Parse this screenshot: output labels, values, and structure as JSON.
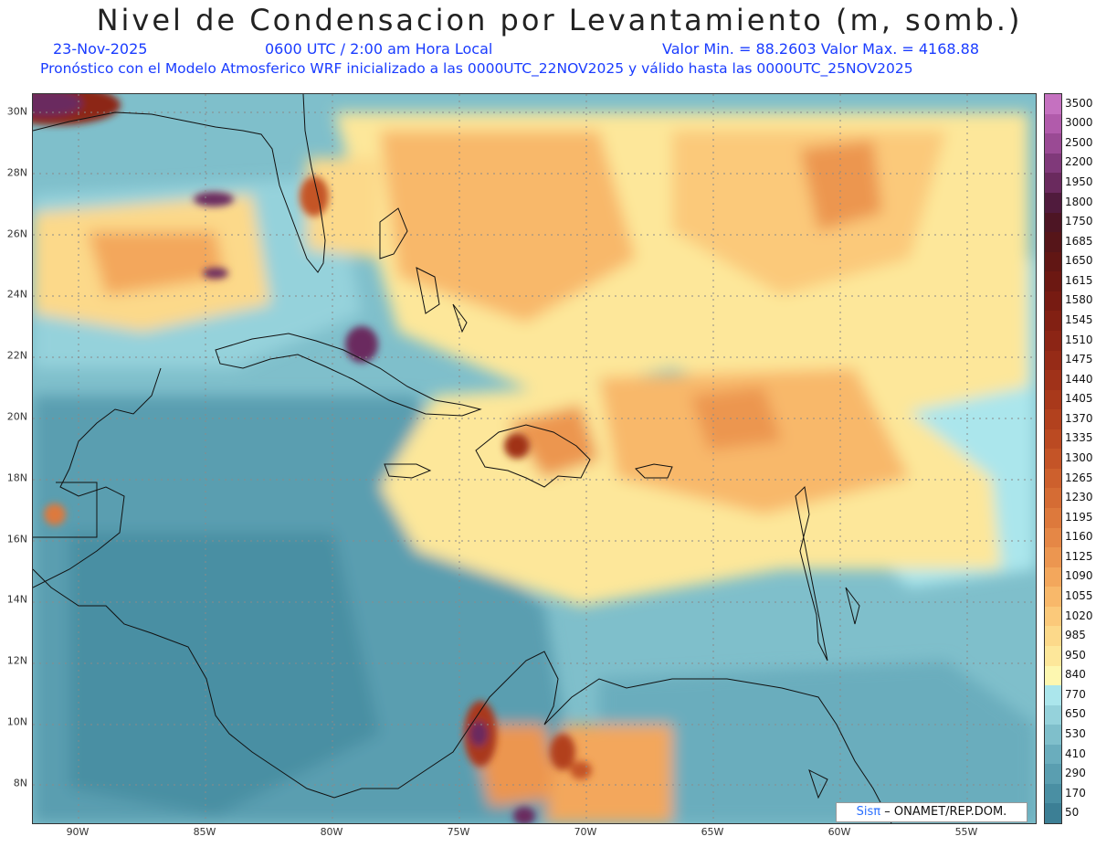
{
  "title": "Nivel de Condensacion por Levantamiento (m, somb.)",
  "subtitle": {
    "date": "23-Nov-2025",
    "time": "0600 UTC / 2:00 am Hora Local",
    "minmax": "Valor Min. = 88.2603   Valor Max. = 4168.88",
    "model_info": "Pronóstico con el Modelo Atmosferico WRF inicializado a las 0000UTC_22NOV2025 y válido hasta las  0000UTC_25NOV2025"
  },
  "lat_ticks": [
    "30N",
    "28N",
    "26N",
    "24N",
    "22N",
    "20N",
    "18N",
    "16N",
    "14N",
    "12N",
    "10N",
    "8N"
  ],
  "lon_ticks": [
    "90W",
    "85W",
    "80W",
    "75W",
    "70W",
    "65W",
    "60W",
    "55W"
  ],
  "colorbar": {
    "labels": [
      "50",
      "170",
      "290",
      "410",
      "530",
      "650",
      "770",
      "840",
      "950",
      "985",
      "1020",
      "1055",
      "1090",
      "1125",
      "1160",
      "1195",
      "1230",
      "1265",
      "1300",
      "1335",
      "1370",
      "1405",
      "1440",
      "1475",
      "1510",
      "1545",
      "1580",
      "1615",
      "1650",
      "1685",
      "1750",
      "1800",
      "1950",
      "2200",
      "2500",
      "3000",
      "3500"
    ],
    "colors": [
      "#3c7f95",
      "#4a8fa3",
      "#5a9eb0",
      "#6aadbd",
      "#7fbfcb",
      "#95d2db",
      "#abe6ec",
      "#fdf7b0",
      "#fde79a",
      "#fcd98a",
      "#fbc97a",
      "#f8b86a",
      "#f3a75c",
      "#ec9650",
      "#e58746",
      "#dd793c",
      "#d56c34",
      "#cd602d",
      "#c45427",
      "#bb4a22",
      "#b2411e",
      "#a9391b",
      "#a03219",
      "#962b17",
      "#8c2515",
      "#822013",
      "#771b12",
      "#6c1812",
      "#611614",
      "#561519",
      "#4d1524",
      "#501b3d",
      "#6a2a5e",
      "#80397a",
      "#9a4a94",
      "#b15bab",
      "#c571c0"
    ]
  },
  "credit": {
    "brand": "Sisπ",
    "text": "– ONAMET/REP.DOM."
  }
}
